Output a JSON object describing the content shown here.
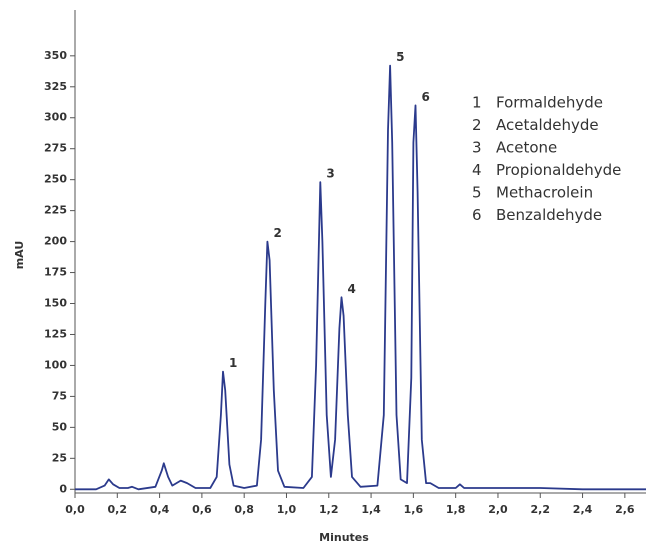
{
  "chart_data": {
    "type": "line",
    "x_label": "Minutes",
    "y_label": "mAU",
    "xlim": [
      0,
      2.7
    ],
    "ylim": [
      -3,
      387
    ],
    "xticks": [
      {
        "value": 0,
        "label": "0,0"
      },
      {
        "value": 0.2,
        "label": "0,2"
      },
      {
        "value": 0.4,
        "label": "0,4"
      },
      {
        "value": 0.6,
        "label": "0,6"
      },
      {
        "value": 0.8,
        "label": "0,8"
      },
      {
        "value": 1.0,
        "label": "1,0"
      },
      {
        "value": 1.2,
        "label": "1,2"
      },
      {
        "value": 1.4,
        "label": "1,4"
      },
      {
        "value": 1.6,
        "label": "1,6"
      },
      {
        "value": 1.8,
        "label": "1,8"
      },
      {
        "value": 2.0,
        "label": "2,0"
      },
      {
        "value": 2.2,
        "label": "2,2"
      },
      {
        "value": 2.4,
        "label": "2,4"
      },
      {
        "value": 2.6,
        "label": "2,6"
      }
    ],
    "yticks": [
      0,
      25,
      50,
      75,
      100,
      125,
      150,
      175,
      200,
      225,
      250,
      275,
      300,
      325,
      350
    ],
    "x": [
      0.0,
      0.1,
      0.14,
      0.16,
      0.18,
      0.21,
      0.25,
      0.27,
      0.3,
      0.38,
      0.41,
      0.42,
      0.44,
      0.46,
      0.5,
      0.53,
      0.57,
      0.64,
      0.67,
      0.69,
      0.7,
      0.71,
      0.73,
      0.75,
      0.8,
      0.86,
      0.88,
      0.9,
      0.91,
      0.92,
      0.94,
      0.96,
      0.99,
      1.08,
      1.12,
      1.14,
      1.16,
      1.17,
      1.19,
      1.21,
      1.23,
      1.25,
      1.26,
      1.27,
      1.29,
      1.31,
      1.35,
      1.43,
      1.46,
      1.48,
      1.49,
      1.5,
      1.52,
      1.54,
      1.57,
      1.59,
      1.6,
      1.61,
      1.62,
      1.64,
      1.66,
      1.68,
      1.72,
      1.8,
      1.82,
      1.84,
      2.0,
      2.2,
      2.4,
      2.7
    ],
    "series": [
      {
        "color": "#2b3a8c",
        "values": [
          0,
          0,
          3,
          8,
          4,
          1,
          1,
          2,
          0,
          2,
          15,
          21,
          10,
          3,
          7,
          5,
          1,
          1,
          10,
          60,
          95,
          80,
          20,
          3,
          1,
          3,
          40,
          150,
          200,
          185,
          80,
          15,
          2,
          1,
          10,
          100,
          248,
          200,
          60,
          10,
          40,
          130,
          155,
          140,
          60,
          10,
          2,
          3,
          60,
          290,
          342,
          280,
          60,
          8,
          5,
          90,
          280,
          310,
          240,
          40,
          5,
          5,
          1,
          1,
          4,
          1,
          1,
          1,
          0,
          0
        ]
      }
    ],
    "annotations": [
      {
        "text": "1",
        "x": 0.7,
        "y": 95
      },
      {
        "text": "2",
        "x": 0.91,
        "y": 200
      },
      {
        "text": "3",
        "x": 1.16,
        "y": 248
      },
      {
        "text": "4",
        "x": 1.26,
        "y": 155
      },
      {
        "text": "5",
        "x": 1.49,
        "y": 342
      },
      {
        "text": "6",
        "x": 1.61,
        "y": 310
      }
    ],
    "peak_legend": [
      {
        "number": "1",
        "name": "Formaldehyde"
      },
      {
        "number": "2",
        "name": "Acetaldehyde"
      },
      {
        "number": "3",
        "name": "Acetone"
      },
      {
        "number": "4",
        "name": "Propionaldehyde"
      },
      {
        "number": "5",
        "name": "Methacrolein"
      },
      {
        "number": "6",
        "name": "Benzaldehyde"
      }
    ]
  }
}
